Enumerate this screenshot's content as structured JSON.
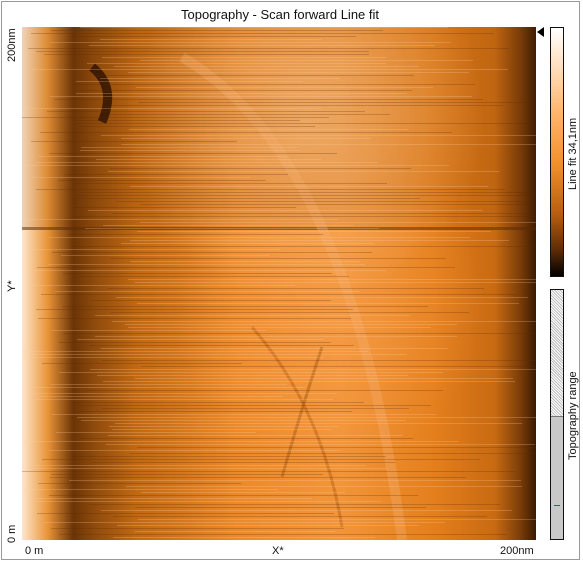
{
  "title": "Topography - Scan forward   Line fit",
  "y_axis": {
    "top_label": "200nm",
    "mid_label": "Y*",
    "bottom_label": "0 m"
  },
  "x_axis": {
    "left_label": "0 m",
    "mid_label": "X*",
    "right_label": "200nm"
  },
  "colorbar": {
    "label": "Line fit 34,1nm",
    "marker_icon": "triangle-marker-icon"
  },
  "range_bar": {
    "label": "Topography range"
  },
  "colors": {
    "low": "#000000",
    "mid": "#f28f2a",
    "high": "#ffffff",
    "border": "#111111"
  }
}
